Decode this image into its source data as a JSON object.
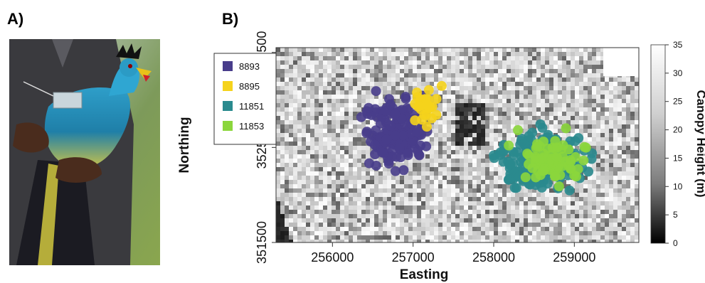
{
  "panels": {
    "a_label": "A)",
    "b_label": "B)"
  },
  "photo": {
    "subject": "great blue turaco with GPS tag held in hands"
  },
  "chart_data": {
    "type": "scatter",
    "xlabel": "Easting",
    "ylabel": "Northing",
    "xlim": [
      255300,
      259800
    ],
    "ylim": [
      351500,
      353550
    ],
    "x_ticks": [
      "256000",
      "257000",
      "258000",
      "259000"
    ],
    "x_tick_values": [
      256000,
      257000,
      258000,
      259000
    ],
    "y_ticks": [
      "351500",
      "352500",
      "353500"
    ],
    "y_tick_values": [
      351500,
      352500,
      353500
    ],
    "legend": {
      "placement": "top-left"
    },
    "background": "canopy height raster (grayscale)",
    "colorbar": {
      "label": "Canopy Height (m)",
      "min": 0,
      "max": 35,
      "ticks": [
        "35",
        "30",
        "25",
        "20",
        "15",
        "10",
        "5",
        "0"
      ]
    },
    "series": [
      {
        "name": "8893",
        "color": "#483d8b",
        "centroid": [
          256800,
          352650
        ],
        "spread": [
          420,
          380
        ],
        "n": 170
      },
      {
        "name": "8895",
        "color": "#f5d31c",
        "centroid": [
          257150,
          352900
        ],
        "spread": [
          200,
          230
        ],
        "n": 30
      },
      {
        "name": "11851",
        "color": "#2a8a8e",
        "centroid": [
          258600,
          352350
        ],
        "spread": [
          520,
          300
        ],
        "n": 230
      },
      {
        "name": "11853",
        "color": "#8bd63c",
        "centroid": [
          258700,
          352350
        ],
        "spread": [
          480,
          280
        ],
        "n": 75
      }
    ]
  },
  "colors": {
    "raster_light": "#e9e9e9",
    "raster_dark": "#202020"
  }
}
